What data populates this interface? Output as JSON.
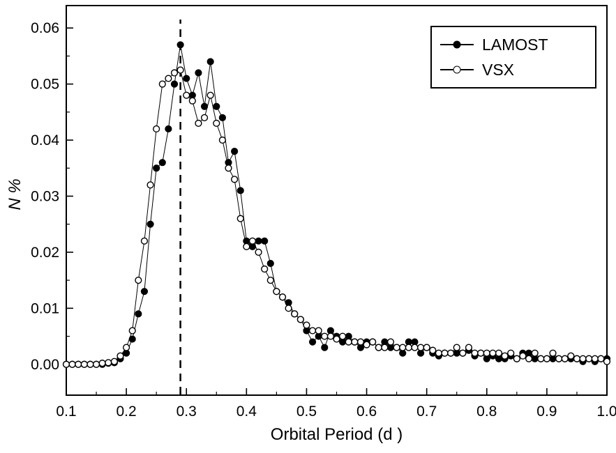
{
  "colors": {
    "foreground": "#000000",
    "background": "#ffffff"
  },
  "legend": {
    "items": [
      {
        "label": "LAMOST",
        "marker": "filled-circle"
      },
      {
        "label": "VSX",
        "marker": "open-circle"
      }
    ],
    "position": "top-right"
  },
  "chart_data": {
    "type": "line",
    "title": "",
    "xlabel": "Orbital Period (d )",
    "ylabel": "N %",
    "xlim": [
      0.1,
      1.0
    ],
    "ylim": [
      -0.0055,
      0.064
    ],
    "grid": false,
    "legend_position": "top-right",
    "vline": {
      "x": 0.29,
      "style": "dashed"
    },
    "x_ticks": [
      0.1,
      0.2,
      0.3,
      0.4,
      0.5,
      0.6,
      0.7,
      0.8,
      0.9,
      1.0
    ],
    "x_tick_labels": [
      "0.1",
      "0.2",
      "0.3",
      "0.4",
      "0.5",
      "0.6",
      "0.7",
      "0.8",
      "0.9",
      "1.0"
    ],
    "y_ticks": [
      0.0,
      0.01,
      0.02,
      0.03,
      0.04,
      0.05,
      0.06
    ],
    "y_tick_labels": [
      "0.00",
      "0.01",
      "0.02",
      "0.03",
      "0.04",
      "0.05",
      "0.06"
    ],
    "x": [
      0.1,
      0.11,
      0.12,
      0.13,
      0.14,
      0.15,
      0.16,
      0.17,
      0.18,
      0.19,
      0.2,
      0.21,
      0.22,
      0.23,
      0.24,
      0.25,
      0.26,
      0.27,
      0.28,
      0.29,
      0.3,
      0.31,
      0.32,
      0.33,
      0.34,
      0.35,
      0.36,
      0.37,
      0.38,
      0.39,
      0.4,
      0.41,
      0.42,
      0.43,
      0.44,
      0.45,
      0.46,
      0.47,
      0.48,
      0.49,
      0.5,
      0.51,
      0.52,
      0.53,
      0.54,
      0.55,
      0.56,
      0.57,
      0.58,
      0.59,
      0.6,
      0.61,
      0.62,
      0.63,
      0.64,
      0.65,
      0.66,
      0.67,
      0.68,
      0.69,
      0.7,
      0.71,
      0.72,
      0.73,
      0.74,
      0.75,
      0.76,
      0.77,
      0.78,
      0.79,
      0.8,
      0.81,
      0.82,
      0.83,
      0.84,
      0.85,
      0.86,
      0.87,
      0.88,
      0.89,
      0.9,
      0.91,
      0.92,
      0.93,
      0.94,
      0.95,
      0.96,
      0.97,
      0.98,
      0.99,
      1.0
    ],
    "series": [
      {
        "name": "LAMOST",
        "marker": "filled-circle",
        "values": [
          0.0,
          0.0,
          0.0,
          0.0,
          0.0,
          0.0,
          0.0,
          0.0002,
          0.0003,
          0.001,
          0.002,
          0.0045,
          0.009,
          0.013,
          0.025,
          0.035,
          0.036,
          0.042,
          0.05,
          0.057,
          0.051,
          0.048,
          0.052,
          0.046,
          0.054,
          0.046,
          0.044,
          0.036,
          0.038,
          0.031,
          0.022,
          0.021,
          0.022,
          0.022,
          0.018,
          0.013,
          0.012,
          0.011,
          0.009,
          0.008,
          0.006,
          0.004,
          0.005,
          0.003,
          0.006,
          0.005,
          0.004,
          0.005,
          0.004,
          0.003,
          0.004,
          0.004,
          0.003,
          0.004,
          0.003,
          0.003,
          0.002,
          0.004,
          0.004,
          0.002,
          0.003,
          0.002,
          0.0015,
          0.002,
          0.002,
          0.002,
          0.002,
          0.0025,
          0.0015,
          0.002,
          0.001,
          0.0015,
          0.001,
          0.001,
          0.0015,
          0.001,
          0.002,
          0.002,
          0.001,
          0.001,
          0.001,
          0.001,
          0.001,
          0.001,
          0.001,
          0.001,
          0.0005,
          0.001,
          0.0005,
          0.001,
          0.001
        ]
      },
      {
        "name": "VSX",
        "marker": "open-circle",
        "values": [
          0.0,
          0.0,
          0.0,
          0.0,
          0.0,
          0.0,
          0.0002,
          0.0003,
          0.0005,
          0.0015,
          0.003,
          0.006,
          0.015,
          0.022,
          0.032,
          0.042,
          0.05,
          0.051,
          0.052,
          0.0525,
          0.048,
          0.047,
          0.043,
          0.044,
          0.048,
          0.043,
          0.04,
          0.035,
          0.033,
          0.026,
          0.021,
          0.022,
          0.02,
          0.017,
          0.015,
          0.013,
          0.012,
          0.01,
          0.009,
          0.008,
          0.007,
          0.006,
          0.006,
          0.005,
          0.005,
          0.0045,
          0.005,
          0.004,
          0.004,
          0.004,
          0.0035,
          0.004,
          0.003,
          0.003,
          0.004,
          0.003,
          0.003,
          0.003,
          0.003,
          0.003,
          0.003,
          0.0025,
          0.002,
          0.002,
          0.002,
          0.003,
          0.002,
          0.003,
          0.002,
          0.002,
          0.002,
          0.002,
          0.002,
          0.0015,
          0.002,
          0.001,
          0.0015,
          0.001,
          0.002,
          0.001,
          0.001,
          0.002,
          0.001,
          0.001,
          0.0015,
          0.001,
          0.001,
          0.001,
          0.001,
          0.001,
          0.0005
        ]
      }
    ]
  }
}
